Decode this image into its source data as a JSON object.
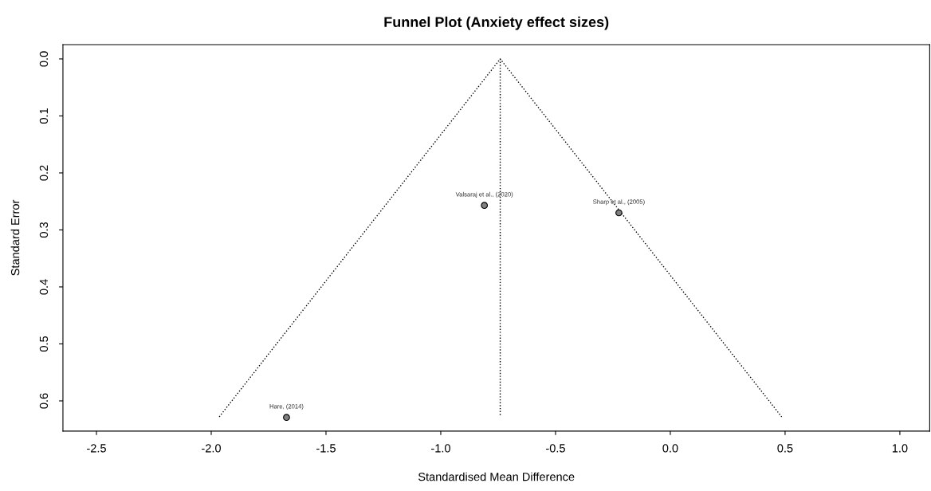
{
  "chart_data": {
    "type": "scatter",
    "title": "Funnel Plot (Anxiety effect sizes)",
    "xlabel": "Standardised Mean Difference",
    "ylabel": "Standard Error",
    "series": [
      {
        "color": "#808080",
        "marker": "circle",
        "x": [
          -0.81,
          -0.224,
          -1.672
        ],
        "values": [
          0.257,
          0.27,
          0.629
        ]
      },
      {
        "type": "line",
        "color": "#000000",
        "line_style": "dotted",
        "marker": "none",
        "x": [
          -1.965,
          -0.741,
          0.485
        ],
        "values": [
          0.628,
          0,
          0.628
        ]
      },
      {
        "type": "line",
        "color": "#000000",
        "line_style": "dotted",
        "marker": "none",
        "x": [
          -0.741,
          -0.741
        ],
        "values": [
          0,
          0.628
        ]
      }
    ],
    "annotations": [
      {
        "text": "Valsaraj et al., (2020)",
        "x": -0.81,
        "y": 0.257
      },
      {
        "text": "Sharp et al., (2005)",
        "x": -0.224,
        "y": 0.27
      },
      {
        "text": "Hare, (2014)",
        "x": -1.672,
        "y": 0.629
      }
    ],
    "xlim": [
      -2.646,
      1.13
    ],
    "ylim": [
      0.653,
      -0.025
    ],
    "xticks": [
      {
        "value": -2.5,
        "label": "-2.5"
      },
      {
        "value": -2.0,
        "label": "-2.0"
      },
      {
        "value": -1.5,
        "label": "-1.5"
      },
      {
        "value": -1.0,
        "label": "-1.0"
      },
      {
        "value": -0.5,
        "label": "-0.5"
      },
      {
        "value": 0,
        "label": "0.0"
      },
      {
        "value": 0.5,
        "label": "0.5"
      },
      {
        "value": 1.0,
        "label": "1.0"
      }
    ],
    "yticks": [
      {
        "value": 0,
        "label": "0.0"
      },
      0.1,
      0.2,
      0.3,
      0.4,
      0.5,
      0.6
    ],
    "grid": false,
    "legend": false
  }
}
